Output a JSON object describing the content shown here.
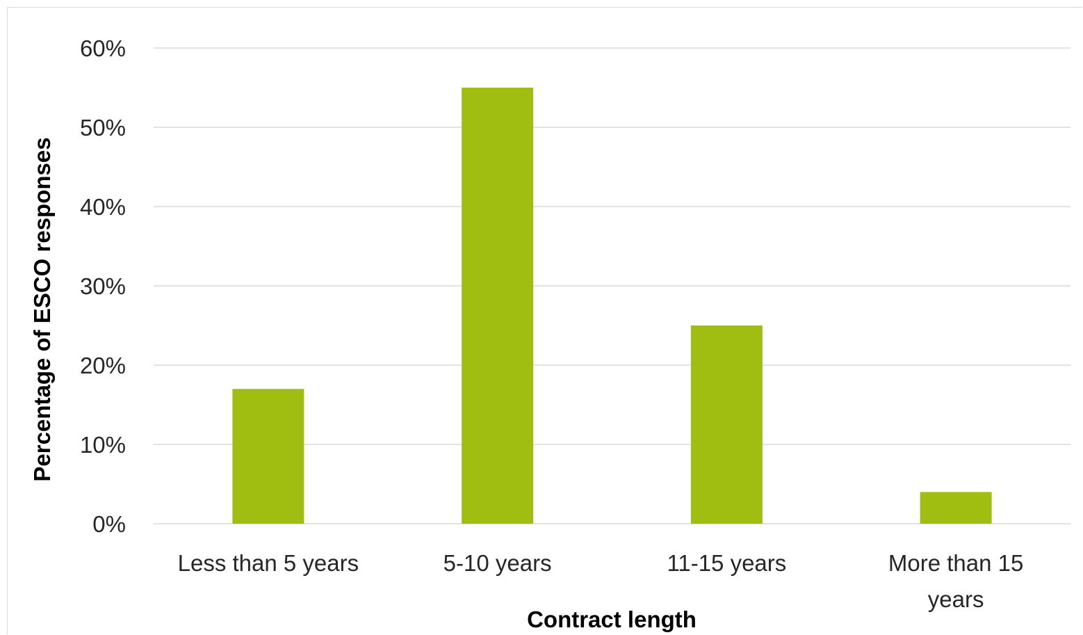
{
  "chart_data": {
    "type": "bar",
    "categories": [
      "Less than 5 years",
      "5-10 years",
      "11-15 years",
      "More than 15 years"
    ],
    "category_lines": [
      [
        "Less than 5 years"
      ],
      [
        "5-10 years"
      ],
      [
        "11-15 years"
      ],
      [
        "More than 15",
        "years"
      ]
    ],
    "values": [
      17,
      55,
      25,
      4
    ],
    "unit": "%",
    "title": "",
    "xlabel": "Contract length",
    "ylabel": "Percentage of ESCO responses",
    "ylim": [
      0,
      60
    ],
    "yticks": [
      "0%",
      "10%",
      "20%",
      "30%",
      "40%",
      "50%",
      "60%"
    ],
    "grid": true,
    "legend": "none",
    "bar_color": "#a0be12",
    "grid_color": "#d9d9d9"
  }
}
